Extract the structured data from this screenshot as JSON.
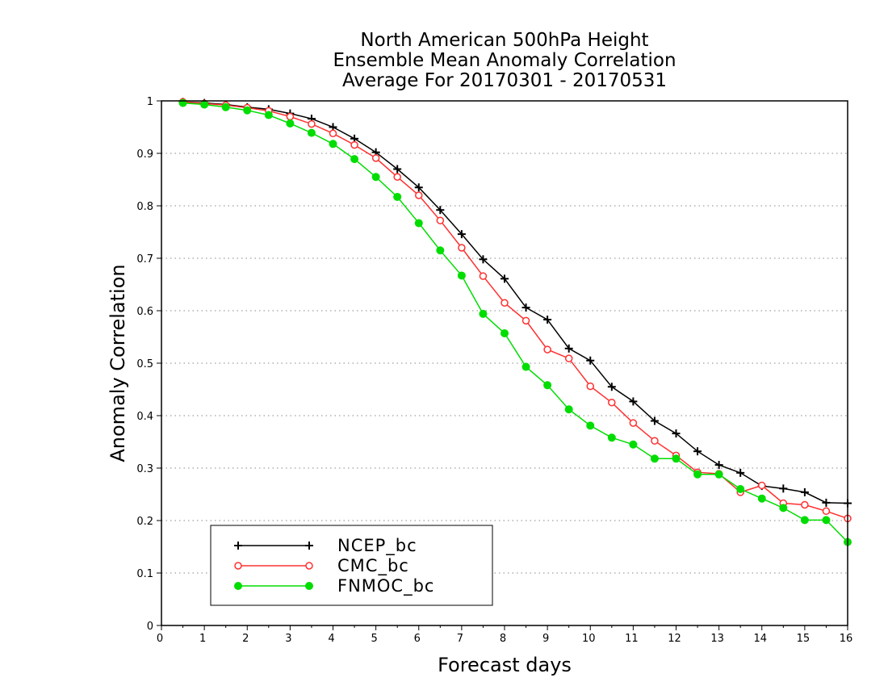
{
  "chart_data": {
    "type": "line",
    "title": [
      "North American 500hPa Height",
      "Ensemble Mean Anomaly Correlation",
      "Average For 20170301 - 20170531"
    ],
    "xlabel": "Forecast days",
    "ylabel": "Anomaly Correlation",
    "xlim": [
      0,
      16
    ],
    "ylim": [
      0,
      1
    ],
    "xticks": [
      "0",
      "1",
      "2",
      "3",
      "4",
      "5",
      "6",
      "7",
      "8",
      "9",
      "10",
      "11",
      "12",
      "13",
      "14",
      "15",
      "16"
    ],
    "yticks": [
      "0",
      "0.1",
      "0.2",
      "0.3",
      "0.4",
      "0.5",
      "0.6",
      "0.7",
      "0.8",
      "0.9",
      "1"
    ],
    "grid": "horizontal dotted",
    "legend_position": "bottom-left",
    "x": [
      0.5,
      1,
      1.5,
      2,
      2.5,
      3,
      3.5,
      4,
      4.5,
      5,
      5.5,
      6,
      6.5,
      7,
      7.5,
      8,
      8.5,
      9,
      9.5,
      10,
      10.5,
      11,
      11.5,
      12,
      12.5,
      13,
      13.5,
      14,
      14.5,
      15,
      15.5,
      16
    ],
    "series": [
      {
        "name": "NCEP_bc",
        "color": "#000000",
        "marker": "plus",
        "values": [
          0.998,
          0.996,
          0.993,
          0.988,
          0.984,
          0.976,
          0.966,
          0.95,
          0.928,
          0.902,
          0.87,
          0.835,
          0.792,
          0.746,
          0.698,
          0.661,
          0.606,
          0.583,
          0.528,
          0.505,
          0.455,
          0.427,
          0.39,
          0.366,
          0.332,
          0.306,
          0.291,
          0.266,
          0.261,
          0.254,
          0.234,
          0.233
        ]
      },
      {
        "name": "CMC_bc",
        "color": "#ff3030",
        "marker": "open-circle",
        "values": [
          0.998,
          0.995,
          0.992,
          0.987,
          0.981,
          0.97,
          0.956,
          0.938,
          0.916,
          0.891,
          0.855,
          0.82,
          0.772,
          0.72,
          0.666,
          0.615,
          0.581,
          0.526,
          0.509,
          0.456,
          0.425,
          0.386,
          0.352,
          0.324,
          0.292,
          0.289,
          0.254,
          0.267,
          0.233,
          0.23,
          0.218,
          0.204
        ]
      },
      {
        "name": "FNMOC_bc",
        "color": "#00dd00",
        "marker": "filled-circle",
        "values": [
          0.996,
          0.993,
          0.988,
          0.982,
          0.973,
          0.957,
          0.939,
          0.918,
          0.889,
          0.855,
          0.817,
          0.767,
          0.715,
          0.667,
          0.594,
          0.557,
          0.493,
          0.458,
          0.412,
          0.381,
          0.358,
          0.345,
          0.318,
          0.318,
          0.288,
          0.288,
          0.26,
          0.242,
          0.224,
          0.201,
          0.201,
          0.159
        ]
      }
    ]
  }
}
